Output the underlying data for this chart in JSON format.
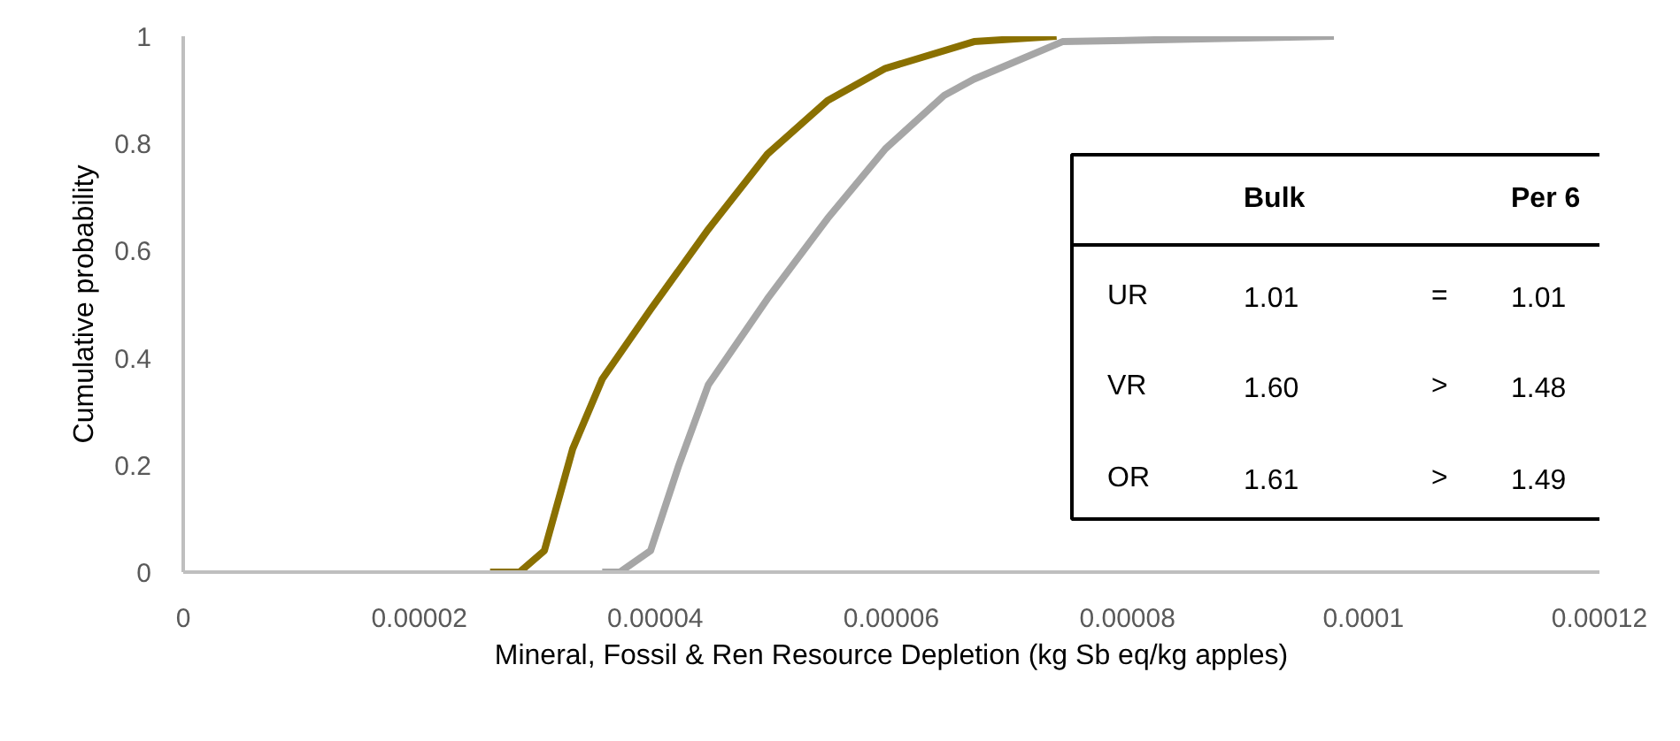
{
  "chart_data": {
    "type": "line",
    "xlabel": "Mineral, Fossil & Ren Resource Depletion (kg Sb eq/kg apples)",
    "ylabel": "Cumulative probability",
    "xlim": [
      0,
      0.00012
    ],
    "xticks": [
      0,
      {
        "value": 2e-05,
        "label": "0.00002"
      },
      {
        "value": 4e-05,
        "label": "0.00004"
      },
      {
        "value": 6e-05,
        "label": "0.00006"
      },
      {
        "value": 8e-05,
        "label": "0.00008"
      },
      {
        "value": 0.0001,
        "label": "0.0001"
      },
      {
        "value": 0.00012,
        "label": "0.00012"
      }
    ],
    "ylim": [
      0,
      1
    ],
    "yticks": [
      0,
      0.2,
      0.4,
      0.6,
      0.8,
      1
    ],
    "series": [
      {
        "color": "#8a7000",
        "x": [
          2.6e-05,
          2.85e-05,
          3.06e-05,
          3.3e-05,
          3.55e-05,
          3.96e-05,
          4.45e-05,
          4.95e-05,
          5.46e-05,
          5.95e-05,
          6.7e-05,
          7.4e-05
        ],
        "values": [
          0,
          0,
          0.04,
          0.23,
          0.36,
          0.49,
          0.64,
          0.78,
          0.88,
          0.94,
          0.99,
          1
        ]
      },
      {
        "color": "#a6a6a6",
        "x": [
          3.55e-05,
          3.7e-05,
          3.96e-05,
          4.2e-05,
          4.45e-05,
          4.95e-05,
          5.46e-05,
          5.95e-05,
          6.45e-05,
          6.7e-05,
          7.45e-05,
          9.75e-05
        ],
        "values": [
          0,
          0,
          0.04,
          0.2,
          0.35,
          0.51,
          0.66,
          0.79,
          0.89,
          0.92,
          0.99,
          1
        ]
      }
    ],
    "annotations": [
      "Bulk",
      "Per 6",
      "UR",
      "1.01",
      "=",
      "1.01",
      "VR",
      "1.60",
      ">",
      "1.48",
      "OR",
      "1.61",
      ">",
      "1.49"
    ]
  }
}
